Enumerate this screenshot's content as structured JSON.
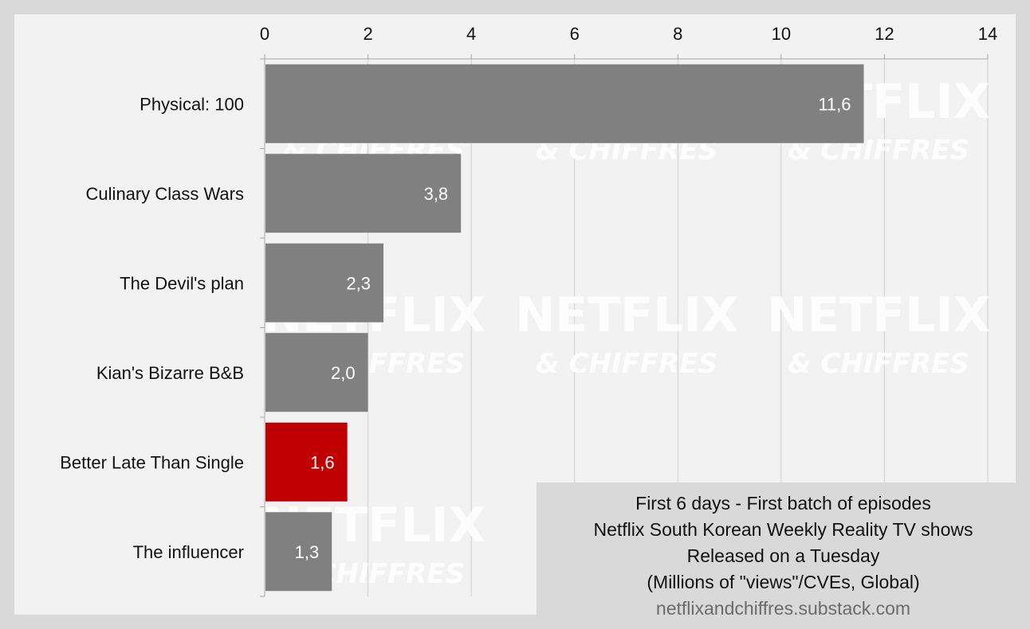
{
  "chart_data": {
    "type": "bar",
    "orientation": "horizontal",
    "categories": [
      "Physical: 100",
      "Culinary Class Wars",
      "The Devil's plan",
      "Kian's Bizarre B&B",
      "Better Late Than Single",
      "The influencer"
    ],
    "values": [
      11.6,
      3.8,
      2.3,
      2.0,
      1.6,
      1.3
    ],
    "value_labels": [
      "11,6",
      "3,8",
      "2,3",
      "2,0",
      "1,6",
      "1,3"
    ],
    "highlight": "Better Late Than Single",
    "xlim": [
      0,
      14
    ],
    "xticks": [
      0,
      2,
      4,
      6,
      8,
      10,
      12,
      14
    ],
    "grid": true,
    "colors": {
      "bar": "#808080",
      "highlight": "#c00000",
      "grid": "#d0d0d0",
      "axis": "#a6a6a6"
    },
    "title": "",
    "xlabel": "",
    "ylabel": ""
  },
  "annotation": {
    "lines": [
      "First 6 days - First batch of episodes",
      "Netflix South Korean Weekly Reality TV shows",
      "Released on a Tuesday",
      "(Millions of \"views\"/CVEs, Global)"
    ],
    "source": "netflixandchiffres.substack.com"
  },
  "watermark": {
    "brand": "NETFLIX",
    "tagline": "& CHIFFRES"
  }
}
